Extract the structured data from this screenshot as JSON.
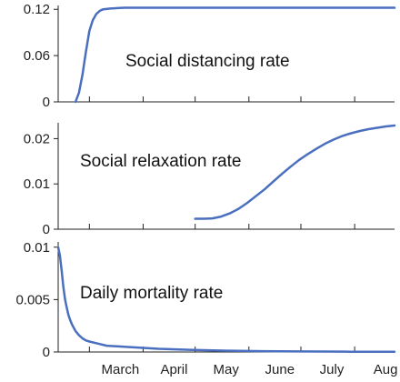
{
  "chart_data": [
    {
      "type": "line",
      "title": "Social distancing rate",
      "xlabel": "",
      "ylabel": "",
      "ylim": [
        0,
        0.125
      ],
      "y_ticks": [
        0,
        0.06,
        0.12
      ],
      "y_tick_labels": [
        "0",
        "0.06",
        "0.12"
      ],
      "series": [
        {
          "color": "#4a6fbf",
          "x": [
            -8,
            -6,
            -4,
            -2,
            0,
            2,
            4,
            6,
            8,
            12,
            20,
            30,
            60,
            90,
            120,
            150,
            176
          ],
          "y": [
            0,
            0.012,
            0.035,
            0.065,
            0.092,
            0.106,
            0.114,
            0.118,
            0.12,
            0.121,
            0.122,
            0.122,
            0.122,
            0.122,
            0.122,
            0.122,
            0.122
          ]
        }
      ]
    },
    {
      "type": "line",
      "title": "Social relaxation rate",
      "xlabel": "",
      "ylabel": "",
      "ylim": [
        0,
        0.0235
      ],
      "y_ticks": [
        0,
        0.01,
        0.02
      ],
      "y_tick_labels": [
        "0",
        "0.01",
        "0.02"
      ],
      "series": [
        {
          "color": "#4a6fbf",
          "x": [
            61,
            66,
            71,
            76,
            81,
            86,
            91,
            96,
            101,
            106,
            111,
            116,
            121,
            126,
            131,
            136,
            141,
            146,
            151,
            156,
            161,
            166,
            171,
            176
          ],
          "y": [
            0.0023,
            0.0023,
            0.0024,
            0.0028,
            0.0035,
            0.0045,
            0.0058,
            0.0073,
            0.0088,
            0.0105,
            0.0122,
            0.0138,
            0.0153,
            0.0166,
            0.0178,
            0.0189,
            0.0198,
            0.0206,
            0.0212,
            0.0217,
            0.0221,
            0.0224,
            0.0227,
            0.0229
          ]
        }
      ]
    },
    {
      "type": "line",
      "title": "Daily mortality rate",
      "xlabel": "",
      "ylabel": "",
      "ylim": [
        0,
        0.0105
      ],
      "y_ticks": [
        0,
        0.005,
        0.01
      ],
      "y_tick_labels": [
        "0",
        "0.005",
        "0.01"
      ],
      "x_ticks": [
        0,
        31,
        61,
        92,
        122,
        153
      ],
      "x_tick_labels": [
        "March",
        "April",
        "May",
        "June",
        "July",
        "Aug"
      ],
      "series": [
        {
          "color": "#4a6fbf",
          "x": [
            -18,
            -17,
            -16,
            -15,
            -14,
            -13,
            -12,
            -11,
            -10,
            -9,
            -8,
            -7,
            -6,
            -4,
            -2,
            0,
            5,
            10,
            20,
            30,
            40,
            60,
            80,
            100,
            120,
            150,
            176
          ],
          "y": [
            0.01,
            0.0092,
            0.0078,
            0.0062,
            0.005,
            0.0042,
            0.0035,
            0.003,
            0.0026,
            0.0023,
            0.002,
            0.0018,
            0.0016,
            0.0013,
            0.0011,
            0.001,
            0.0008,
            0.0006,
            0.0005,
            0.0004,
            0.0003,
            0.0002,
            0.00012,
            8e-05,
            5e-05,
            3e-05,
            2e-05
          ]
        }
      ]
    }
  ]
}
